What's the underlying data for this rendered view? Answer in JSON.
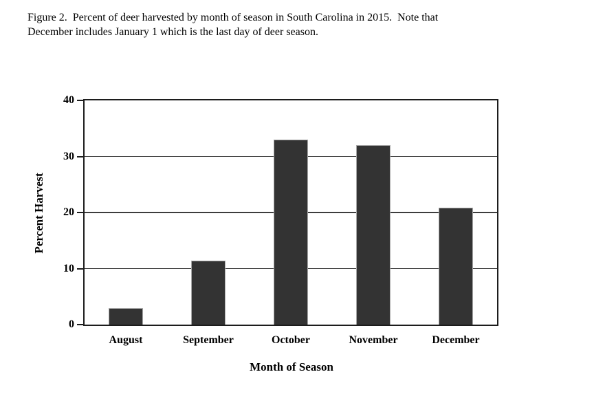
{
  "figure_caption": {
    "lines": [
      "Figure 2.  Percent of deer harvested by month of season in South Carolina in 2015.  Note that",
      "December includes January 1 which is the last day of deer season."
    ]
  },
  "chart_data": {
    "type": "bar",
    "categories": [
      "August",
      "September",
      "October",
      "November",
      "December"
    ],
    "values": [
      3,
      11.4,
      33,
      32,
      20.8
    ],
    "title": "",
    "xlabel": "Month of Season",
    "ylabel": "Percent Harvest",
    "ylim": [
      0,
      40
    ],
    "yticks": [
      0,
      10,
      20,
      30,
      40
    ],
    "grid": "horizontal-at-10-20-30",
    "legend": "none",
    "bar_color": "#333333",
    "bar_border_color": "#a8a8a8",
    "axis_color": "#1c1c1c",
    "gridline_color": "#3d3d3d",
    "background_color": "#ffffff"
  }
}
